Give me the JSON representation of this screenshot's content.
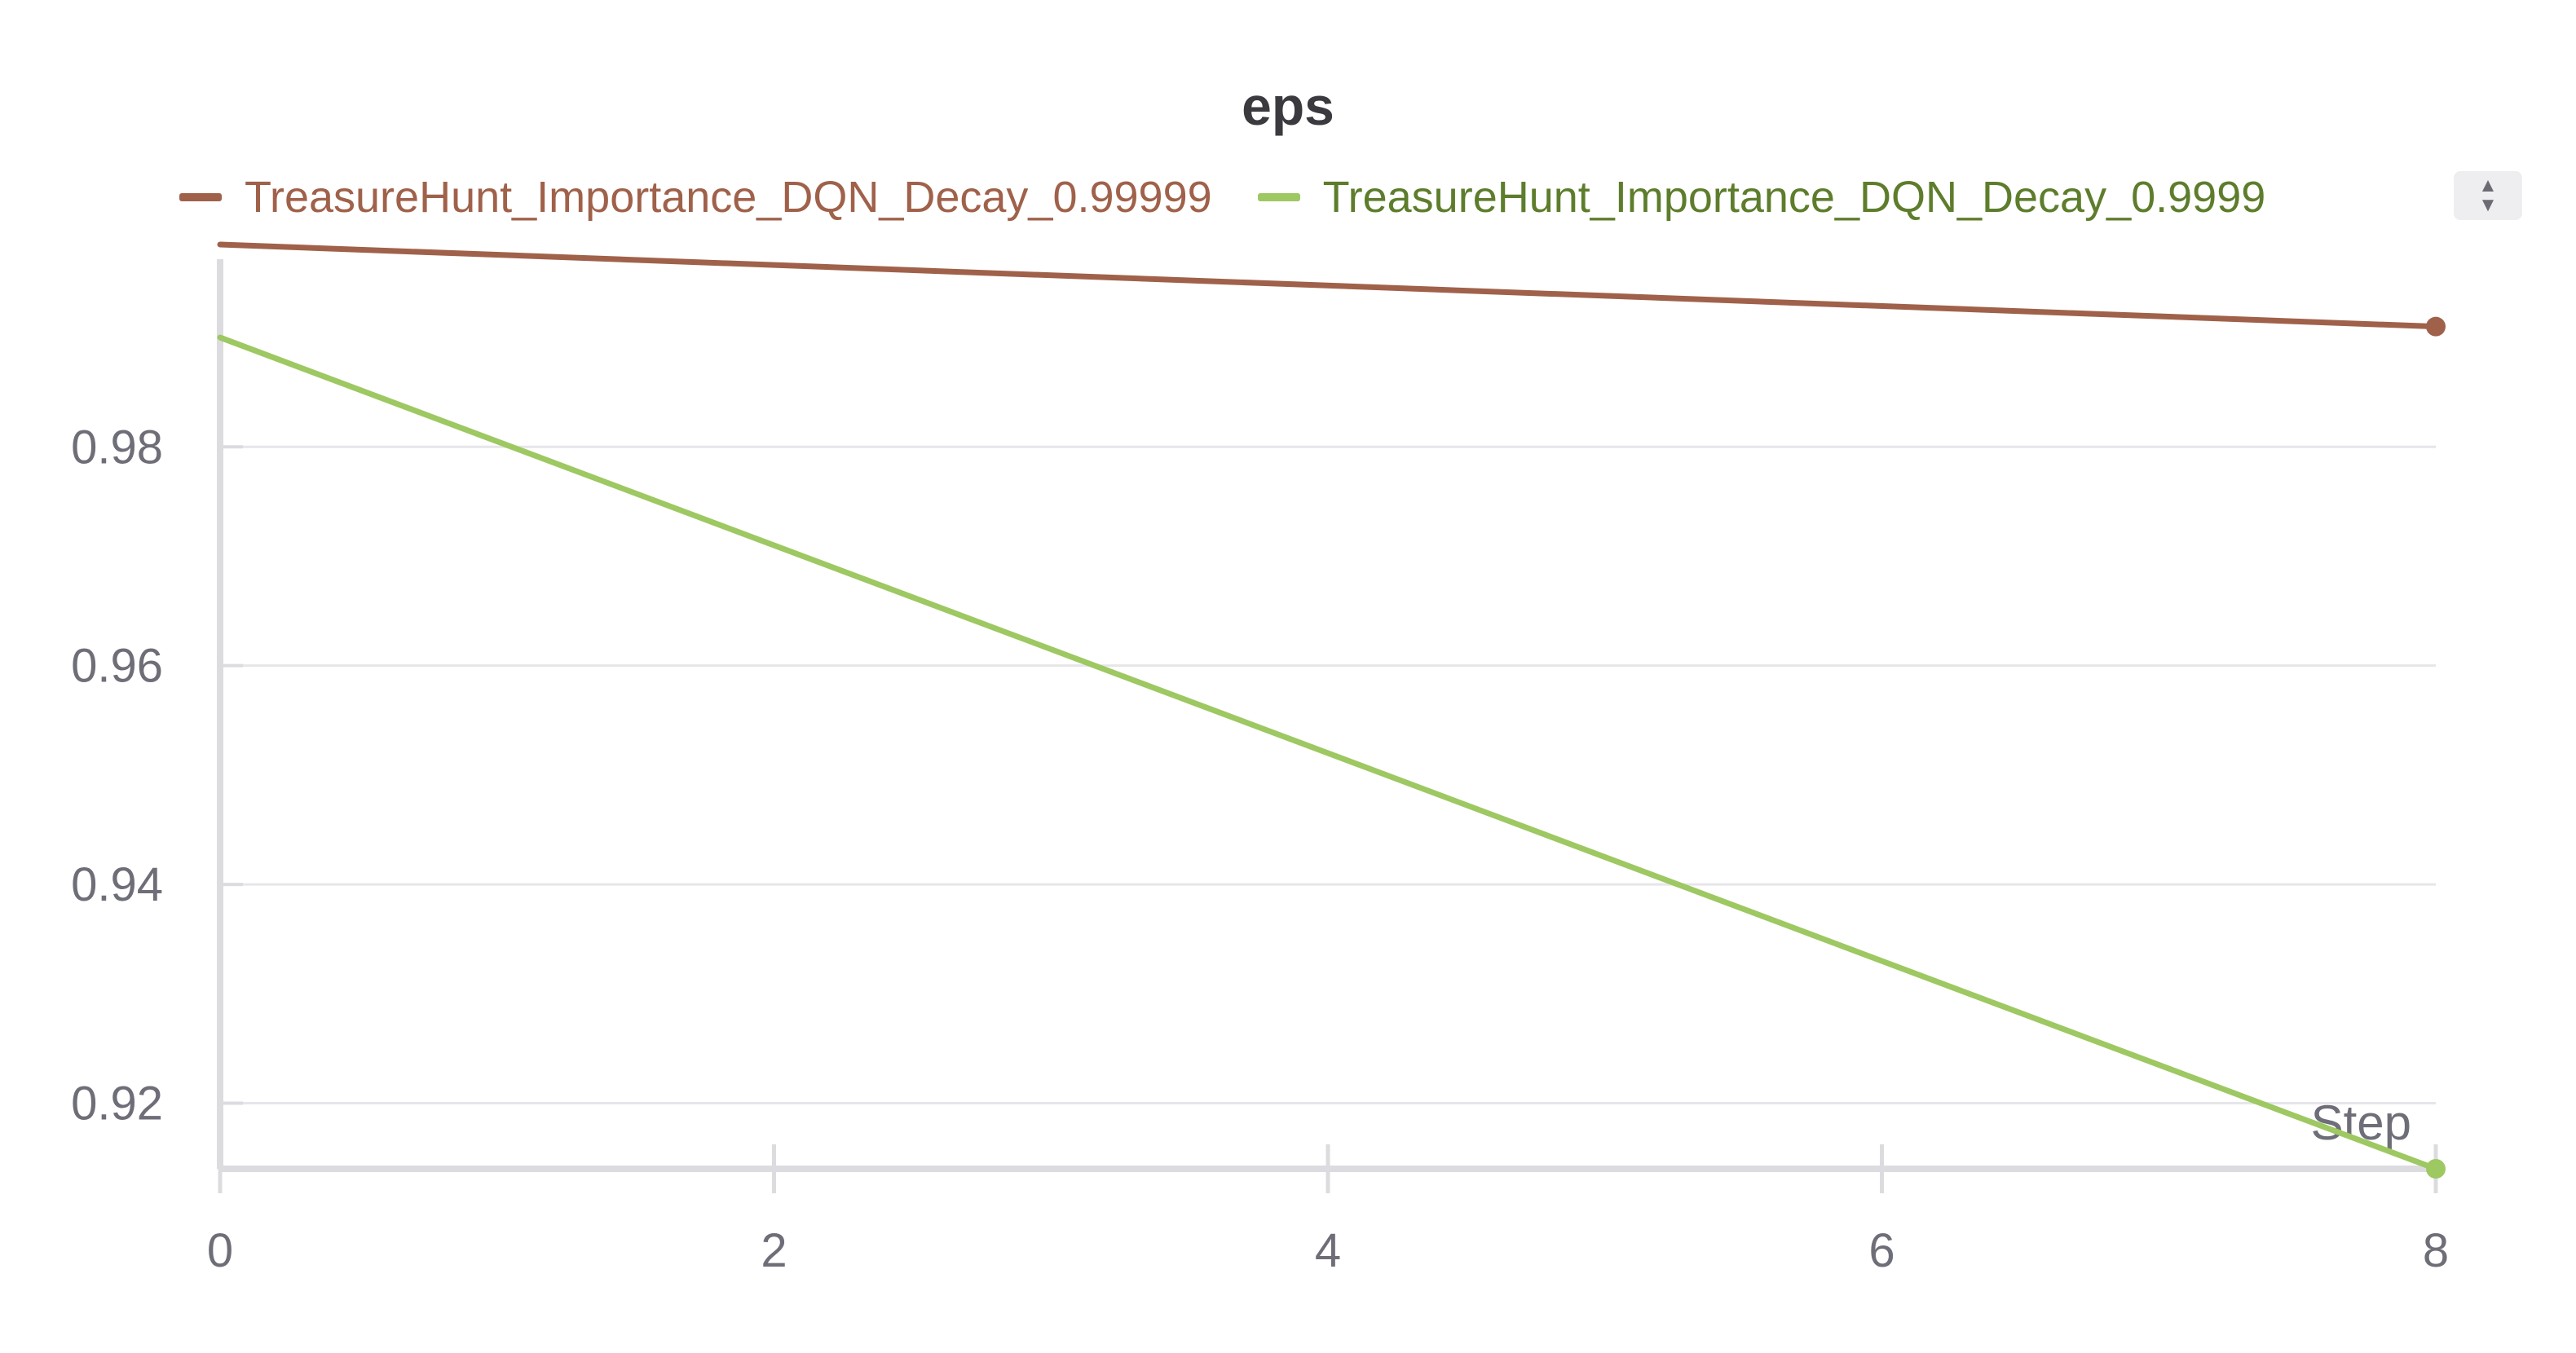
{
  "chart_data": {
    "type": "line",
    "title": "eps",
    "xlabel": "Step",
    "ylabel": "",
    "xlim": [
      0,
      8
    ],
    "ylim": [
      0.914,
      0.9985
    ],
    "x_ticks": [
      0,
      2,
      4,
      6,
      8
    ],
    "y_ticks": [
      0.92,
      0.94,
      0.96,
      0.98
    ],
    "x_tick_labels": [
      "0",
      "2",
      "4",
      "6",
      "8"
    ],
    "y_tick_labels": [
      "0.92",
      "0.94",
      "0.96",
      "0.98"
    ],
    "grid": true,
    "legend_position": "top",
    "series": [
      {
        "name": "TreasureHunt_Importance_DQN_Decay_0.99999",
        "color": "#a0614a",
        "label_color": "#a0614a",
        "x": [
          0,
          8
        ],
        "y": [
          0.9985,
          0.991
        ]
      },
      {
        "name": "TreasureHunt_Importance_DQN_Decay_0.9999",
        "color": "#9dc862",
        "label_color": "#5e7d2c",
        "x": [
          0,
          8
        ],
        "y": [
          0.99,
          0.914
        ]
      }
    ]
  }
}
